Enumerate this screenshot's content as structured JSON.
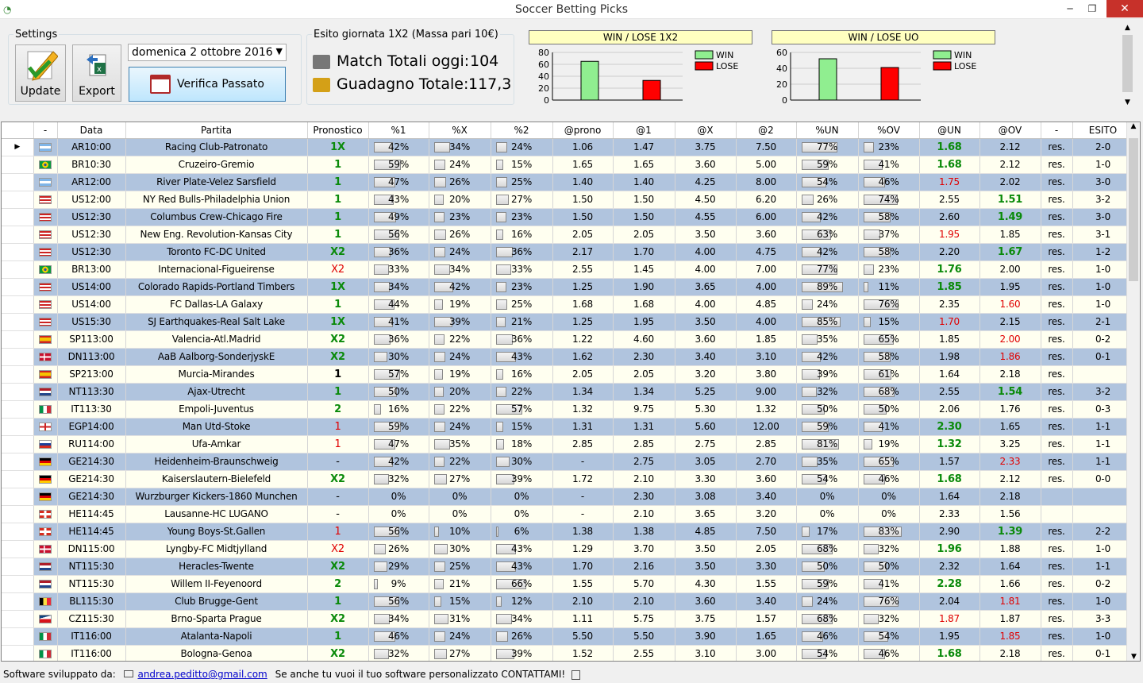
{
  "window": {
    "title": "Soccer Betting Picks",
    "min": "─",
    "max": "❐",
    "close": "✕"
  },
  "settings": {
    "legend": "Settings",
    "update": "Update",
    "export": "Export",
    "date": "domenica   2   ottobre   2016",
    "verify": "Verifica Passato"
  },
  "stats": {
    "legend": "Esito giornata 1X2 (Massa pari 10€)",
    "match_label": "Match Totali oggi:",
    "match_value": "104",
    "gain_label": "Guadagno Totale:",
    "gain_value": "117,3"
  },
  "chart_data": [
    {
      "type": "bar",
      "title": "WIN / LOSE 1X2",
      "categories": [
        "WIN",
        "LOSE"
      ],
      "values": [
        65,
        33
      ],
      "colors": [
        "#90ee90",
        "#ff0000"
      ],
      "ylim": [
        0,
        80
      ],
      "yticks": [
        "0",
        "20",
        "40",
        "60",
        "80"
      ],
      "legend": [
        "WIN",
        "LOSE"
      ],
      "grid": true,
      "legend_position": "right"
    },
    {
      "type": "bar",
      "title": "WIN / LOSE UO",
      "categories": [
        "WIN",
        "LOSE"
      ],
      "values": [
        52,
        41
      ],
      "colors": [
        "#90ee90",
        "#ff0000"
      ],
      "ylim": [
        0,
        60
      ],
      "yticks": [
        "0",
        "20",
        "40",
        "60"
      ],
      "legend": [
        "WIN",
        "LOSE"
      ],
      "grid": true,
      "legend_position": "right"
    }
  ],
  "table": {
    "columns": [
      "-",
      "Data",
      "Partita",
      "Pronostico",
      "%1",
      "%X",
      "%2",
      "@prono",
      "@1",
      "@X",
      "@2",
      "%UN",
      "%OV",
      "@UN",
      "@OV",
      "-",
      "ESITO"
    ],
    "rows": [
      [
        "ar",
        "AR10:00",
        "Racing Club-Patronato",
        "1X",
        "g",
        42,
        34,
        24,
        "1.06",
        "1.47",
        "3.75",
        "7.50",
        77,
        23,
        "1.68",
        "g",
        "2.12",
        "",
        "res.",
        "2-0"
      ],
      [
        "br",
        "BR10:30",
        "Cruzeiro-Gremio",
        "1",
        "g",
        59,
        24,
        15,
        "1.65",
        "1.65",
        "3.60",
        "5.00",
        59,
        41,
        "1.68",
        "g",
        "2.12",
        "",
        "res.",
        "1-0"
      ],
      [
        "ar",
        "AR12:00",
        "River Plate-Velez Sarsfield",
        "1",
        "g",
        47,
        26,
        25,
        "1.40",
        "1.40",
        "4.25",
        "8.00",
        54,
        46,
        "1.75",
        "r",
        "2.02",
        "",
        "res.",
        "3-0"
      ],
      [
        "us",
        "US12:00",
        "NY Red Bulls-Philadelphia Union",
        "1",
        "g",
        43,
        20,
        27,
        "1.50",
        "1.50",
        "4.50",
        "6.20",
        26,
        74,
        "2.55",
        "",
        "1.51",
        "g",
        "res.",
        "3-2"
      ],
      [
        "us",
        "US12:30",
        "Columbus Crew-Chicago Fire",
        "1",
        "g",
        49,
        23,
        23,
        "1.50",
        "1.50",
        "4.55",
        "6.00",
        42,
        58,
        "2.60",
        "",
        "1.49",
        "g",
        "res.",
        "3-0"
      ],
      [
        "us",
        "US12:30",
        "New Eng. Revolution-Kansas City",
        "1",
        "g",
        56,
        26,
        16,
        "2.05",
        "2.05",
        "3.50",
        "3.60",
        63,
        37,
        "1.95",
        "r",
        "1.85",
        "",
        "res.",
        "3-1"
      ],
      [
        "us",
        "US12:30",
        "Toronto FC-DC United",
        "X2",
        "g",
        36,
        24,
        36,
        "2.17",
        "1.70",
        "4.00",
        "4.75",
        42,
        58,
        "2.20",
        "",
        "1.67",
        "g",
        "res.",
        "1-2"
      ],
      [
        "br",
        "BR13:00",
        "Internacional-Figueirense",
        "X2",
        "r",
        33,
        34,
        33,
        "2.55",
        "1.45",
        "4.00",
        "7.00",
        77,
        23,
        "1.76",
        "g",
        "2.00",
        "",
        "res.",
        "1-0"
      ],
      [
        "us",
        "US14:00",
        "Colorado Rapids-Portland Timbers",
        "1X",
        "g",
        34,
        42,
        23,
        "1.25",
        "1.90",
        "3.65",
        "4.00",
        89,
        11,
        "1.85",
        "g",
        "1.95",
        "",
        "res.",
        "1-0"
      ],
      [
        "us",
        "US14:00",
        "FC Dallas-LA Galaxy",
        "1",
        "g",
        44,
        19,
        25,
        "1.68",
        "1.68",
        "4.00",
        "4.85",
        24,
        76,
        "2.35",
        "",
        "1.60",
        "r",
        "res.",
        "1-0"
      ],
      [
        "us",
        "US15:30",
        "SJ Earthquakes-Real Salt Lake",
        "1X",
        "g",
        41,
        39,
        21,
        "1.25",
        "1.95",
        "3.50",
        "4.00",
        85,
        15,
        "1.70",
        "r",
        "2.15",
        "",
        "res.",
        "2-1"
      ],
      [
        "es",
        "SP113:00",
        "Valencia-Atl.Madrid",
        "X2",
        "g",
        36,
        22,
        36,
        "1.22",
        "4.60",
        "3.60",
        "1.85",
        35,
        65,
        "1.85",
        "",
        "2.00",
        "r",
        "res.",
        "0-2"
      ],
      [
        "dk",
        "DN113:00",
        "AaB Aalborg-SonderjyskE",
        "X2",
        "g",
        30,
        24,
        43,
        "1.62",
        "2.30",
        "3.40",
        "3.10",
        42,
        58,
        "1.98",
        "",
        "1.86",
        "r",
        "res.",
        "0-1"
      ],
      [
        "es",
        "SP213:00",
        "Murcia-Mirandes",
        "1",
        "b",
        57,
        19,
        16,
        "2.05",
        "2.05",
        "3.20",
        "3.80",
        39,
        61,
        "1.64",
        "",
        "2.18",
        "",
        "res.",
        ""
      ],
      [
        "nl",
        "NT113:30",
        "Ajax-Utrecht",
        "1",
        "g",
        50,
        20,
        22,
        "1.34",
        "1.34",
        "5.25",
        "9.00",
        32,
        68,
        "2.55",
        "",
        "1.54",
        "g",
        "res.",
        "3-2"
      ],
      [
        "it",
        "IT113:30",
        "Empoli-Juventus",
        "2",
        "g",
        16,
        22,
        57,
        "1.32",
        "9.75",
        "5.30",
        "1.32",
        50,
        50,
        "2.06",
        "",
        "1.76",
        "",
        "res.",
        "0-3"
      ],
      [
        "en",
        "EGP14:00",
        "Man Utd-Stoke",
        "1",
        "r",
        59,
        24,
        15,
        "1.31",
        "1.31",
        "5.60",
        "12.00",
        59,
        41,
        "2.30",
        "g",
        "1.65",
        "",
        "res.",
        "1-1"
      ],
      [
        "ru",
        "RU114:00",
        "Ufa-Amkar",
        "1",
        "r",
        47,
        35,
        18,
        "2.85",
        "2.85",
        "2.75",
        "2.85",
        81,
        19,
        "1.32",
        "g",
        "3.25",
        "",
        "res.",
        "1-1"
      ],
      [
        "de",
        "GE214:30",
        "Heidenheim-Braunschweig",
        "-",
        "",
        42,
        22,
        30,
        "-",
        "2.75",
        "3.05",
        "2.70",
        35,
        65,
        "1.57",
        "",
        "2.33",
        "r",
        "res.",
        "1-1"
      ],
      [
        "de",
        "GE214:30",
        "Kaiserslautern-Bielefeld",
        "X2",
        "g",
        32,
        27,
        39,
        "1.72",
        "2.10",
        "3.30",
        "3.60",
        54,
        46,
        "1.68",
        "g",
        "2.12",
        "",
        "res.",
        "0-0"
      ],
      [
        "de",
        "GE214:30",
        "Wurzburger Kickers-1860 Munchen",
        "-",
        "",
        0,
        0,
        0,
        "-",
        "2.30",
        "3.08",
        "3.40",
        0,
        0,
        "1.64",
        "",
        "2.18",
        "",
        "",
        ""
      ],
      [
        "ch",
        "HE114:45",
        "Lausanne-HC LUGANO",
        "-",
        "",
        0,
        0,
        0,
        "-",
        "2.10",
        "3.65",
        "3.20",
        0,
        0,
        "2.33",
        "",
        "1.56",
        "",
        "",
        ""
      ],
      [
        "ch",
        "HE114:45",
        "Young Boys-St.Gallen",
        "1",
        "r",
        56,
        10,
        6,
        "1.38",
        "1.38",
        "4.85",
        "7.50",
        17,
        83,
        "2.90",
        "",
        "1.39",
        "g",
        "res.",
        "2-2"
      ],
      [
        "dk",
        "DN115:00",
        "Lyngby-FC Midtjylland",
        "X2",
        "r",
        26,
        30,
        43,
        "1.29",
        "3.70",
        "3.50",
        "2.05",
        68,
        32,
        "1.96",
        "g",
        "1.88",
        "",
        "res.",
        "1-0"
      ],
      [
        "nl",
        "NT115:30",
        "Heracles-Twente",
        "X2",
        "g",
        29,
        25,
        43,
        "1.70",
        "2.16",
        "3.50",
        "3.30",
        50,
        50,
        "2.32",
        "",
        "1.64",
        "",
        "res.",
        "1-1"
      ],
      [
        "nl",
        "NT115:30",
        "Willem II-Feyenoord",
        "2",
        "g",
        9,
        21,
        66,
        "1.55",
        "5.70",
        "4.30",
        "1.55",
        59,
        41,
        "2.28",
        "g",
        "1.66",
        "",
        "res.",
        "0-2"
      ],
      [
        "be",
        "BL115:30",
        "Club Brugge-Gent",
        "1",
        "g",
        56,
        15,
        12,
        "2.10",
        "2.10",
        "3.60",
        "3.40",
        24,
        76,
        "2.04",
        "",
        "1.81",
        "r",
        "res.",
        "1-0"
      ],
      [
        "cz",
        "CZ115:30",
        "Brno-Sparta Prague",
        "X2",
        "g",
        34,
        31,
        34,
        "1.11",
        "5.75",
        "3.75",
        "1.57",
        68,
        32,
        "1.87",
        "r",
        "1.87",
        "",
        "res.",
        "3-3"
      ],
      [
        "it",
        "IT116:00",
        "Atalanta-Napoli",
        "1",
        "g",
        46,
        24,
        26,
        "5.50",
        "5.50",
        "3.90",
        "1.65",
        46,
        54,
        "1.95",
        "",
        "1.85",
        "r",
        "res.",
        "1-0"
      ],
      [
        "it",
        "IT116:00",
        "Bologna-Genoa",
        "X2",
        "g",
        32,
        27,
        39,
        "1.52",
        "2.55",
        "3.10",
        "3.00",
        54,
        46,
        "1.68",
        "g",
        "2.18",
        "",
        "res.",
        "0-1"
      ]
    ]
  },
  "footer": {
    "prefix": "Software sviluppato da:",
    "email": "andrea.peditto@gmail.com",
    "suffix": "Se anche tu vuoi il tuo software personalizzato CONTATTAMI!"
  }
}
